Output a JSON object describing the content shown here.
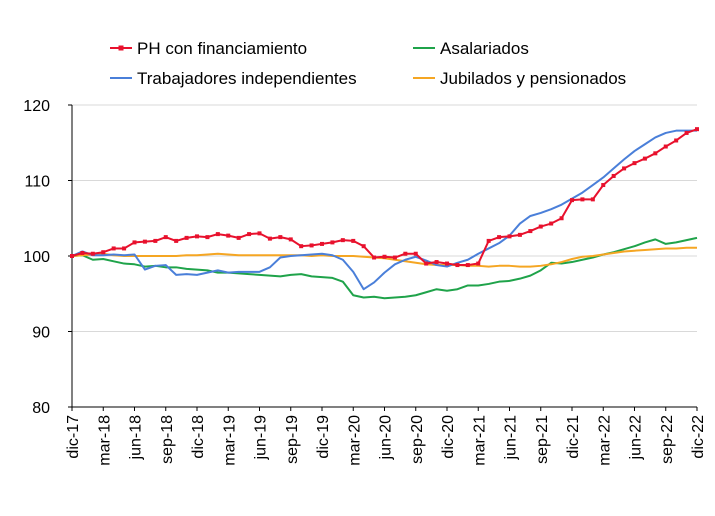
{
  "chart_data": {
    "type": "line",
    "title": "",
    "xlabel": "",
    "ylabel": "",
    "ylim": [
      80,
      120
    ],
    "yticks": [
      80,
      90,
      100,
      110,
      120
    ],
    "grid": "horizontal",
    "legend_position": "top",
    "x_tick_labels": [
      "dic-17",
      "mar-18",
      "jun-18",
      "sep-18",
      "dic-18",
      "mar-19",
      "jun-19",
      "sep-19",
      "dic-19",
      "mar-20",
      "jun-20",
      "sep-20",
      "dic-20",
      "mar-21",
      "jun-21",
      "sep-21",
      "dic-21",
      "mar-22",
      "jun-22",
      "sep-22",
      "dic-22"
    ],
    "n_points": 61,
    "series": [
      {
        "name": "PH con financiamiento",
        "color": "#e8112d",
        "marker": "square",
        "values": [
          100.0,
          100.4,
          100.3,
          100.5,
          101.0,
          101.0,
          101.8,
          101.9,
          102.0,
          102.5,
          102.0,
          102.4,
          102.6,
          102.5,
          102.9,
          102.7,
          102.4,
          102.9,
          103.0,
          102.3,
          102.5,
          102.2,
          101.3,
          101.4,
          101.6,
          101.8,
          102.1,
          102.0,
          101.3,
          99.8,
          99.9,
          99.8,
          100.3,
          100.3,
          99.0,
          99.2,
          99.0,
          98.8,
          98.8,
          99.0,
          102.0,
          102.5,
          102.6,
          102.8,
          103.3,
          103.9,
          104.3,
          105.0,
          107.4,
          107.5,
          107.5,
          109.4,
          110.6,
          111.6,
          112.3,
          112.9,
          113.6,
          114.5,
          115.3,
          116.3,
          116.8
        ]
      },
      {
        "name": "Asalariados",
        "color": "#1fa34a",
        "marker": "none",
        "values": [
          100.0,
          100.1,
          99.5,
          99.6,
          99.3,
          99.0,
          98.9,
          98.6,
          98.7,
          98.5,
          98.5,
          98.3,
          98.2,
          98.1,
          97.8,
          97.8,
          97.7,
          97.6,
          97.5,
          97.4,
          97.3,
          97.5,
          97.6,
          97.3,
          97.2,
          97.1,
          96.6,
          94.8,
          94.5,
          94.6,
          94.4,
          94.5,
          94.6,
          94.8,
          95.2,
          95.6,
          95.4,
          95.6,
          96.1,
          96.1,
          96.3,
          96.6,
          96.7,
          97.0,
          97.4,
          98.1,
          99.1,
          99.0,
          99.2,
          99.5,
          99.8,
          100.2,
          100.5,
          100.9,
          101.3,
          101.8,
          102.2,
          101.6,
          101.8,
          102.1,
          102.4
        ]
      },
      {
        "name": "Trabajadores independientes",
        "color": "#4a7fd9",
        "marker": "none",
        "values": [
          100.0,
          100.6,
          100.1,
          100.1,
          100.2,
          100.1,
          100.2,
          98.2,
          98.7,
          98.8,
          97.5,
          97.6,
          97.5,
          97.8,
          98.1,
          97.8,
          97.9,
          97.9,
          97.9,
          98.5,
          99.8,
          100.0,
          100.1,
          100.2,
          100.3,
          100.1,
          99.5,
          97.9,
          95.6,
          96.5,
          97.8,
          98.9,
          99.5,
          99.9,
          99.4,
          98.8,
          98.6,
          99.1,
          99.5,
          100.3,
          101.0,
          101.7,
          102.7,
          104.3,
          105.3,
          105.7,
          106.2,
          106.8,
          107.6,
          108.4,
          109.4,
          110.4,
          111.6,
          112.8,
          113.9,
          114.8,
          115.7,
          116.3,
          116.6,
          116.6,
          116.6
        ]
      },
      {
        "name": "Jubilados y pensionados",
        "color": "#f5a623",
        "marker": "none",
        "values": [
          100.0,
          100.1,
          100.2,
          100.3,
          100.1,
          100.0,
          100.0,
          100.0,
          100.0,
          100.0,
          100.0,
          100.1,
          100.1,
          100.2,
          100.3,
          100.2,
          100.1,
          100.1,
          100.1,
          100.1,
          100.1,
          100.1,
          100.1,
          100.0,
          100.1,
          100.0,
          100.0,
          100.0,
          99.9,
          99.8,
          99.7,
          99.5,
          99.3,
          99.1,
          98.9,
          98.8,
          98.8,
          98.8,
          98.7,
          98.7,
          98.6,
          98.7,
          98.7,
          98.6,
          98.6,
          98.7,
          98.9,
          99.2,
          99.6,
          99.9,
          100.0,
          100.2,
          100.4,
          100.6,
          100.7,
          100.8,
          100.9,
          101.0,
          101.0,
          101.1,
          101.1
        ]
      }
    ]
  }
}
